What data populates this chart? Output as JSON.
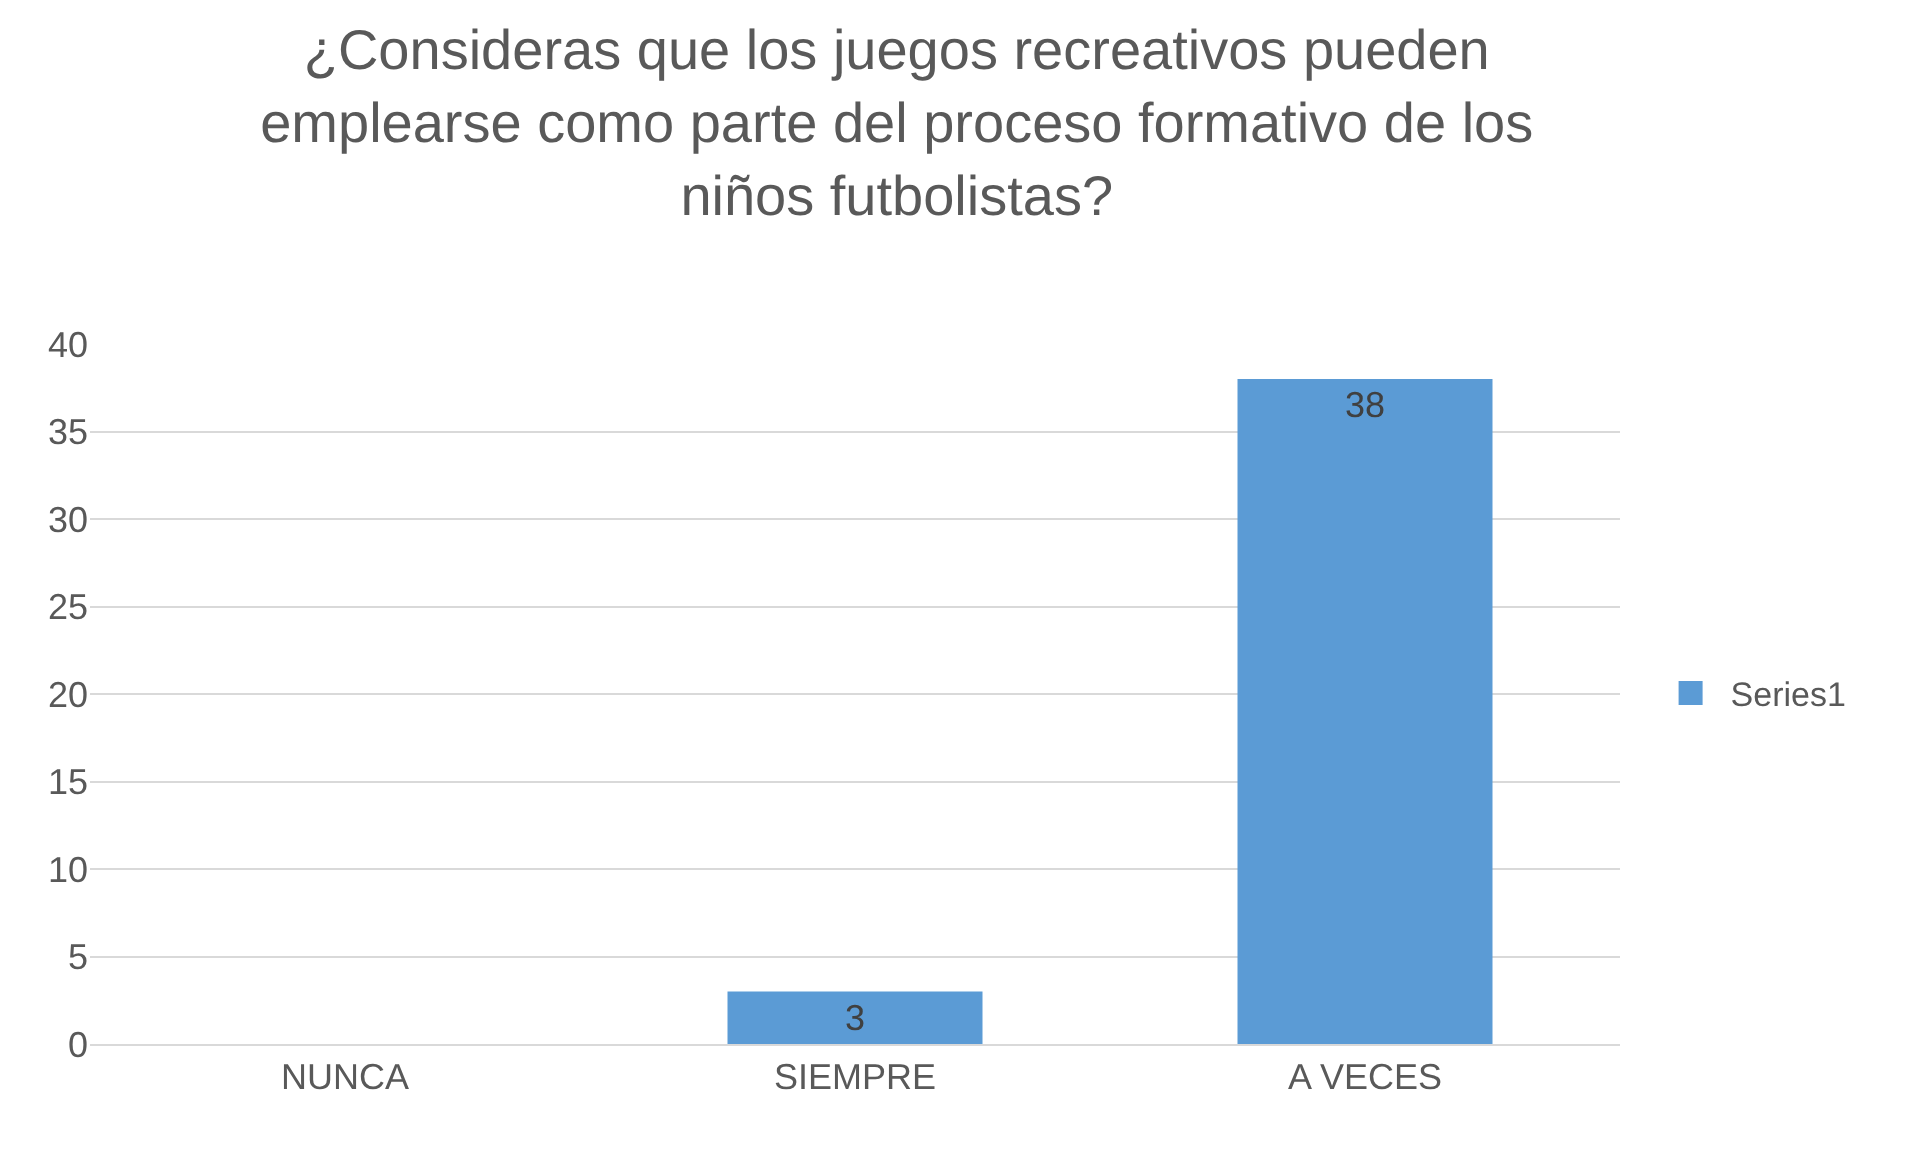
{
  "chart_data": {
    "type": "bar",
    "title": "¿Consideras que los juegos recreativos pueden\nemplearse como parte del proceso formativo de los\nniños futbolistas?",
    "categories": [
      "NUNCA",
      "SIEMPRE",
      "A VECES"
    ],
    "series": [
      {
        "name": "Series1",
        "color": "#5b9bd5",
        "values": [
          0,
          3,
          38
        ],
        "value_labels": [
          null,
          "3",
          "38"
        ]
      }
    ],
    "ylim": [
      0,
      40
    ],
    "yticks": [
      0,
      5,
      10,
      15,
      20,
      25,
      30,
      35,
      40
    ],
    "grid": "y",
    "legend": "right"
  }
}
